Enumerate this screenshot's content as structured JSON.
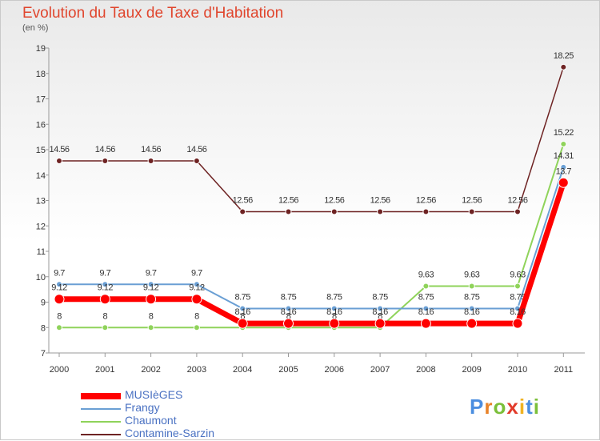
{
  "logo_text": "Proxiti",
  "chart_data": {
    "type": "line",
    "title": "Evolution du Taux de Taxe d'Habitation",
    "subtitle": "(en %)",
    "xlabel": "",
    "ylabel": "",
    "categories": [
      "2000",
      "2001",
      "2002",
      "2003",
      "2004",
      "2005",
      "2006",
      "2007",
      "2008",
      "2009",
      "2010",
      "2011"
    ],
    "ylim": [
      7,
      19
    ],
    "yticks": [
      "7",
      "8",
      "9",
      "10",
      "11",
      "12",
      "13",
      "14",
      "15",
      "16",
      "17",
      "18",
      "19"
    ],
    "grid": false,
    "legend_position": "bottom-left",
    "series": [
      {
        "name": "MUSIèGES",
        "color": "#ff0000",
        "values": [
          9.12,
          9.12,
          9.12,
          9.12,
          8.16,
          8.16,
          8.16,
          8.16,
          8.16,
          8.16,
          8.16,
          13.7
        ],
        "labels": [
          "9.12",
          "9.12",
          "9.12",
          "9.12",
          "8.16",
          "8.16",
          "8.16",
          "8.16",
          "8.16",
          "8.16",
          "8.16",
          "13.7"
        ]
      },
      {
        "name": "Frangy",
        "color": "#6a9fd4",
        "values": [
          9.7,
          9.7,
          9.7,
          9.7,
          8.75,
          8.75,
          8.75,
          8.75,
          8.75,
          8.75,
          8.75,
          14.31
        ],
        "labels": [
          "9.7",
          "9.7",
          "9.7",
          "9.7",
          "8.75",
          "8.75",
          "8.75",
          "8.75",
          "8.75",
          "8.75",
          "8.75",
          "14.31"
        ]
      },
      {
        "name": "Chaumont",
        "color": "#8fd35a",
        "values": [
          8,
          8,
          8,
          8,
          8,
          8,
          8,
          8,
          9.63,
          9.63,
          9.63,
          15.22
        ],
        "labels": [
          "8",
          "8",
          "8",
          "8",
          "8",
          "8",
          "8",
          "8",
          "9.63",
          "9.63",
          "9.63",
          "15.22"
        ]
      },
      {
        "name": "Contamine-Sarzin",
        "color": "#6e2323",
        "values": [
          14.56,
          14.56,
          14.56,
          14.56,
          12.56,
          12.56,
          12.56,
          12.56,
          12.56,
          12.56,
          12.56,
          18.25
        ],
        "labels": [
          "14.56",
          "14.56",
          "14.56",
          "14.56",
          "12.56",
          "12.56",
          "12.56",
          "12.56",
          "12.56",
          "12.56",
          "12.56",
          "18.25"
        ]
      }
    ]
  }
}
